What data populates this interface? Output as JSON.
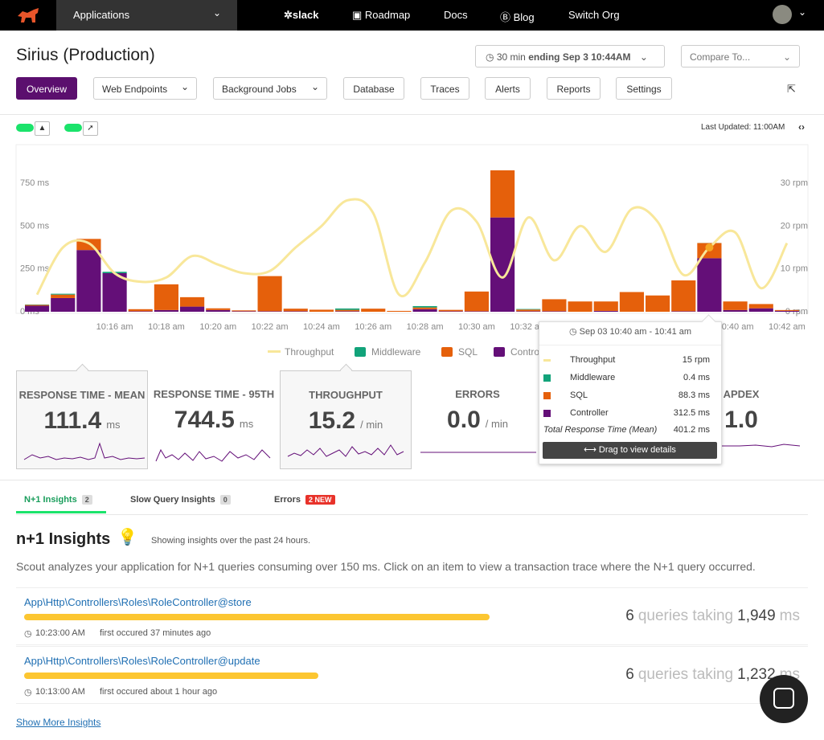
{
  "nav": {
    "apps": "Applications",
    "slack": "slack",
    "links": [
      "Roadmap",
      "Docs",
      "Blog",
      "Switch Org"
    ]
  },
  "header": {
    "title": "Sirius (Production)",
    "range": "30 min",
    "ending": "ending Sep 3 10:44AM",
    "compare": "Compare To..."
  },
  "tabs": [
    "Overview",
    "Web Endpoints",
    "Background Jobs",
    "Database",
    "Traces",
    "Alerts",
    "Reports",
    "Settings"
  ],
  "last_updated": "Last Updated: 11:00AM",
  "chart_data": {
    "type": "bar",
    "stacked": true,
    "categories": [
      null,
      null,
      null,
      "10:16 am",
      null,
      "10:18 am",
      null,
      "10:20 am",
      null,
      "10:22 am",
      null,
      "10:24 am",
      null,
      "10:26 am",
      null,
      "10:28 am",
      null,
      "10:30 am",
      null,
      "10:32 am",
      null,
      "10:34 am",
      null,
      "10:36 am",
      null,
      "10:38 am",
      null,
      "10:40 am",
      null,
      "10:42 am"
    ],
    "series": [
      {
        "name": "Throughput",
        "type": "line",
        "axis": "y2",
        "color": "#f8e79a",
        "values": [
          4,
          15,
          16,
          9,
          7,
          8,
          13,
          11,
          9,
          9.5,
          15,
          20,
          26,
          23,
          4,
          11.5,
          23.5,
          21,
          8,
          22,
          12,
          20,
          14,
          24,
          21,
          8.6,
          15,
          18.5,
          5.5,
          16
        ]
      },
      {
        "name": "Middleware",
        "color": "#12a37a",
        "values": [
          2,
          5,
          0,
          8,
          0,
          0,
          0,
          0,
          0,
          0,
          0,
          0,
          8,
          0,
          0,
          8,
          0,
          0,
          0,
          3,
          0,
          0,
          0,
          0,
          0,
          0,
          0.4,
          0,
          0,
          0
        ]
      },
      {
        "name": "SQL",
        "color": "#e5600b",
        "values": [
          5,
          20,
          65,
          0,
          12,
          150,
          55,
          10,
          5,
          205,
          15,
          12,
          8,
          18,
          5,
          10,
          8,
          115,
          275,
          10,
          70,
          60,
          55,
          115,
          95,
          180,
          88.3,
          50,
          25,
          5
        ]
      },
      {
        "name": "Controller",
        "color": "#640f78",
        "values": [
          35,
          80,
          360,
          225,
          3,
          10,
          30,
          10,
          3,
          3,
          3,
          0,
          3,
          0,
          0,
          15,
          3,
          3,
          550,
          3,
          3,
          0,
          5,
          0,
          0,
          3,
          312.5,
          10,
          20,
          5
        ]
      }
    ],
    "ylim": [
      0,
      975
    ],
    "yticks": [
      {
        "value": 0,
        "label": "0 ms"
      },
      {
        "value": 250,
        "label": "250 ms"
      },
      {
        "value": 500,
        "label": "500 ms"
      },
      {
        "value": 750,
        "label": "750 ms"
      }
    ],
    "y2lim": [
      0,
      39
    ],
    "y2ticks": [
      {
        "value": 0,
        "label": "0 rpm"
      },
      {
        "value": 10,
        "label": "10 rpm"
      },
      {
        "value": 20,
        "label": "20 rpm"
      },
      {
        "value": 30,
        "label": "30 rpm"
      }
    ],
    "grid": false,
    "highlight": 26
  },
  "tooltip": {
    "title": "Sep 03 10:40 am - 10:41 am",
    "rows": [
      {
        "label": "Throughput",
        "value": "15 rpm"
      },
      {
        "label": "Middleware",
        "value": "0.4 ms"
      },
      {
        "label": "SQL",
        "value": "88.3 ms"
      },
      {
        "label": "Controller",
        "value": "312.5 ms"
      }
    ],
    "total_label": "Total Response Time (Mean)",
    "total_value": "401.2 ms",
    "button": "Drag to view details"
  },
  "cards": [
    {
      "title": "RESPONSE TIME - MEAN",
      "value": "111.4",
      "unit": "ms"
    },
    {
      "title": "RESPONSE TIME - 95TH",
      "value": "744.5",
      "unit": "ms"
    },
    {
      "title": "THROUGHPUT",
      "value": "15.2",
      "unit": "/ min"
    },
    {
      "title": "ERRORS",
      "value": "0.0",
      "unit": "/ min"
    },
    {
      "title": "APDEX",
      "value": "1.0"
    }
  ],
  "insight_tabs": [
    {
      "label": "N+1 Insights",
      "badge": "2"
    },
    {
      "label": "Slow Query Insights",
      "badge": "0"
    },
    {
      "label": "Errors",
      "badge": "2 NEW"
    }
  ],
  "insights": {
    "heading": "n+1 Insights",
    "note": "Showing insights over the past 24 hours.",
    "description": "Scout analyzes your application for N+1 queries consuming over 150 ms. Click on an item to view a transaction trace where the N+1 query occurred.",
    "items": [
      {
        "name": "App\\Http\\Controllers\\Roles\\RoleController@store",
        "count": 6,
        "text": "queries taking",
        "ms": 1949,
        "ms_label": "1,949",
        "unit": "ms",
        "time": "10:23:00 AM",
        "age": "first occured 37 minutes ago"
      },
      {
        "name": "App\\Http\\Controllers\\Roles\\RoleController@update",
        "count": 6,
        "text": "queries taking",
        "ms": 1232,
        "ms_label": "1,232",
        "unit": "ms",
        "time": "10:13:00 AM",
        "age": "first occured about 1 hour ago"
      }
    ],
    "more": "Show More Insights"
  }
}
